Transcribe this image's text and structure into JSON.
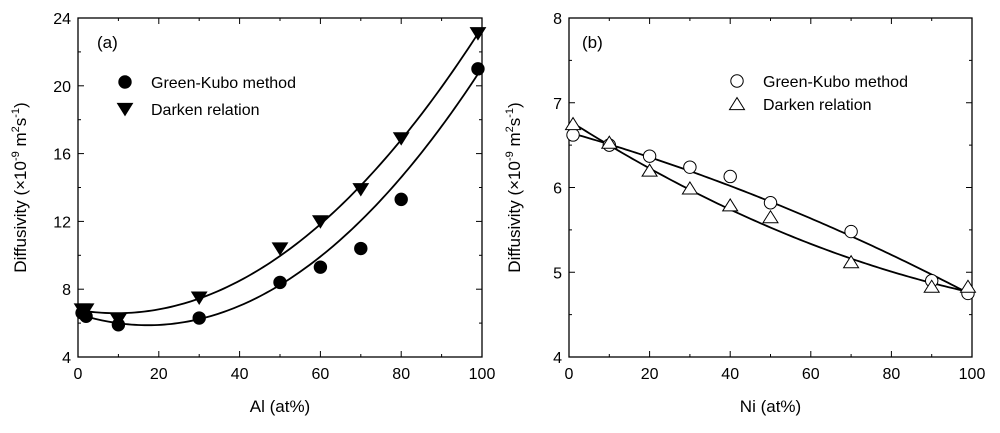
{
  "chart_data": [
    {
      "type": "scatter",
      "panel_label": "(a)",
      "xlabel": "Al (at%)",
      "ylabel": {
        "main": "Diffusivity (×10",
        "exp1": "-9",
        "mid": " m",
        "exp2": "2",
        "end": "s",
        "exp3": "-1",
        "close": ")"
      },
      "xlim": [
        0,
        100
      ],
      "ylim": [
        4,
        24
      ],
      "xticks": [
        0,
        20,
        40,
        60,
        80,
        100
      ],
      "yticks": [
        4,
        8,
        12,
        16,
        20,
        24
      ],
      "grid": false,
      "legend_position": "top-left",
      "series": [
        {
          "name": "Green-Kubo method",
          "marker": "filled-circle",
          "x": [
            1,
            2,
            10,
            30,
            50,
            60,
            70,
            80,
            99
          ],
          "y": [
            6.6,
            6.4,
            5.9,
            6.3,
            8.4,
            9.3,
            10.4,
            13.3,
            21.0
          ],
          "fit": {
            "kind": "quadratic",
            "coef": [
              6.54,
              -0.0768,
              0.00222
            ]
          }
        },
        {
          "name": "Darken relation",
          "marker": "filled-triangle-down",
          "x": [
            1,
            2,
            10,
            30,
            50,
            60,
            70,
            80,
            99
          ],
          "y": [
            6.8,
            6.8,
            6.2,
            7.5,
            10.4,
            12.0,
            13.9,
            16.9,
            23.1
          ],
          "fit": {
            "kind": "quadratic",
            "coef": [
              6.77,
              -0.0392,
              0.00206
            ]
          }
        }
      ]
    },
    {
      "type": "scatter",
      "panel_label": "(b)",
      "xlabel": "Ni (at%)",
      "ylabel": {
        "main": "Diffusivity (×10",
        "exp1": "-9",
        "mid": " m",
        "exp2": "2",
        "end": "s",
        "exp3": "-1",
        "close": ")"
      },
      "xlim": [
        0,
        100
      ],
      "ylim": [
        4,
        8
      ],
      "xticks": [
        0,
        20,
        40,
        60,
        80,
        100
      ],
      "yticks": [
        4,
        5,
        6,
        7,
        8
      ],
      "grid": false,
      "legend_position": "top-right",
      "series": [
        {
          "name": "Green-Kubo method",
          "marker": "open-circle",
          "x": [
            1,
            10,
            20,
            30,
            40,
            50,
            70,
            90,
            99
          ],
          "y": [
            6.62,
            6.5,
            6.37,
            6.24,
            6.13,
            5.82,
            5.48,
            4.9,
            4.75
          ],
          "fit": {
            "kind": "quadratic",
            "coef": [
              6.65,
              -0.0135,
              -5.7e-05
            ]
          }
        },
        {
          "name": "Darken relation",
          "marker": "open-triangle-up",
          "x": [
            1,
            10,
            20,
            30,
            40,
            50,
            70,
            90,
            99
          ],
          "y": [
            6.75,
            6.53,
            6.2,
            5.99,
            5.79,
            5.65,
            5.12,
            4.83,
            4.83
          ],
          "fit": {
            "kind": "quadratic",
            "coef": [
              6.79,
              -0.0302,
              9.9e-05
            ]
          }
        }
      ]
    }
  ]
}
